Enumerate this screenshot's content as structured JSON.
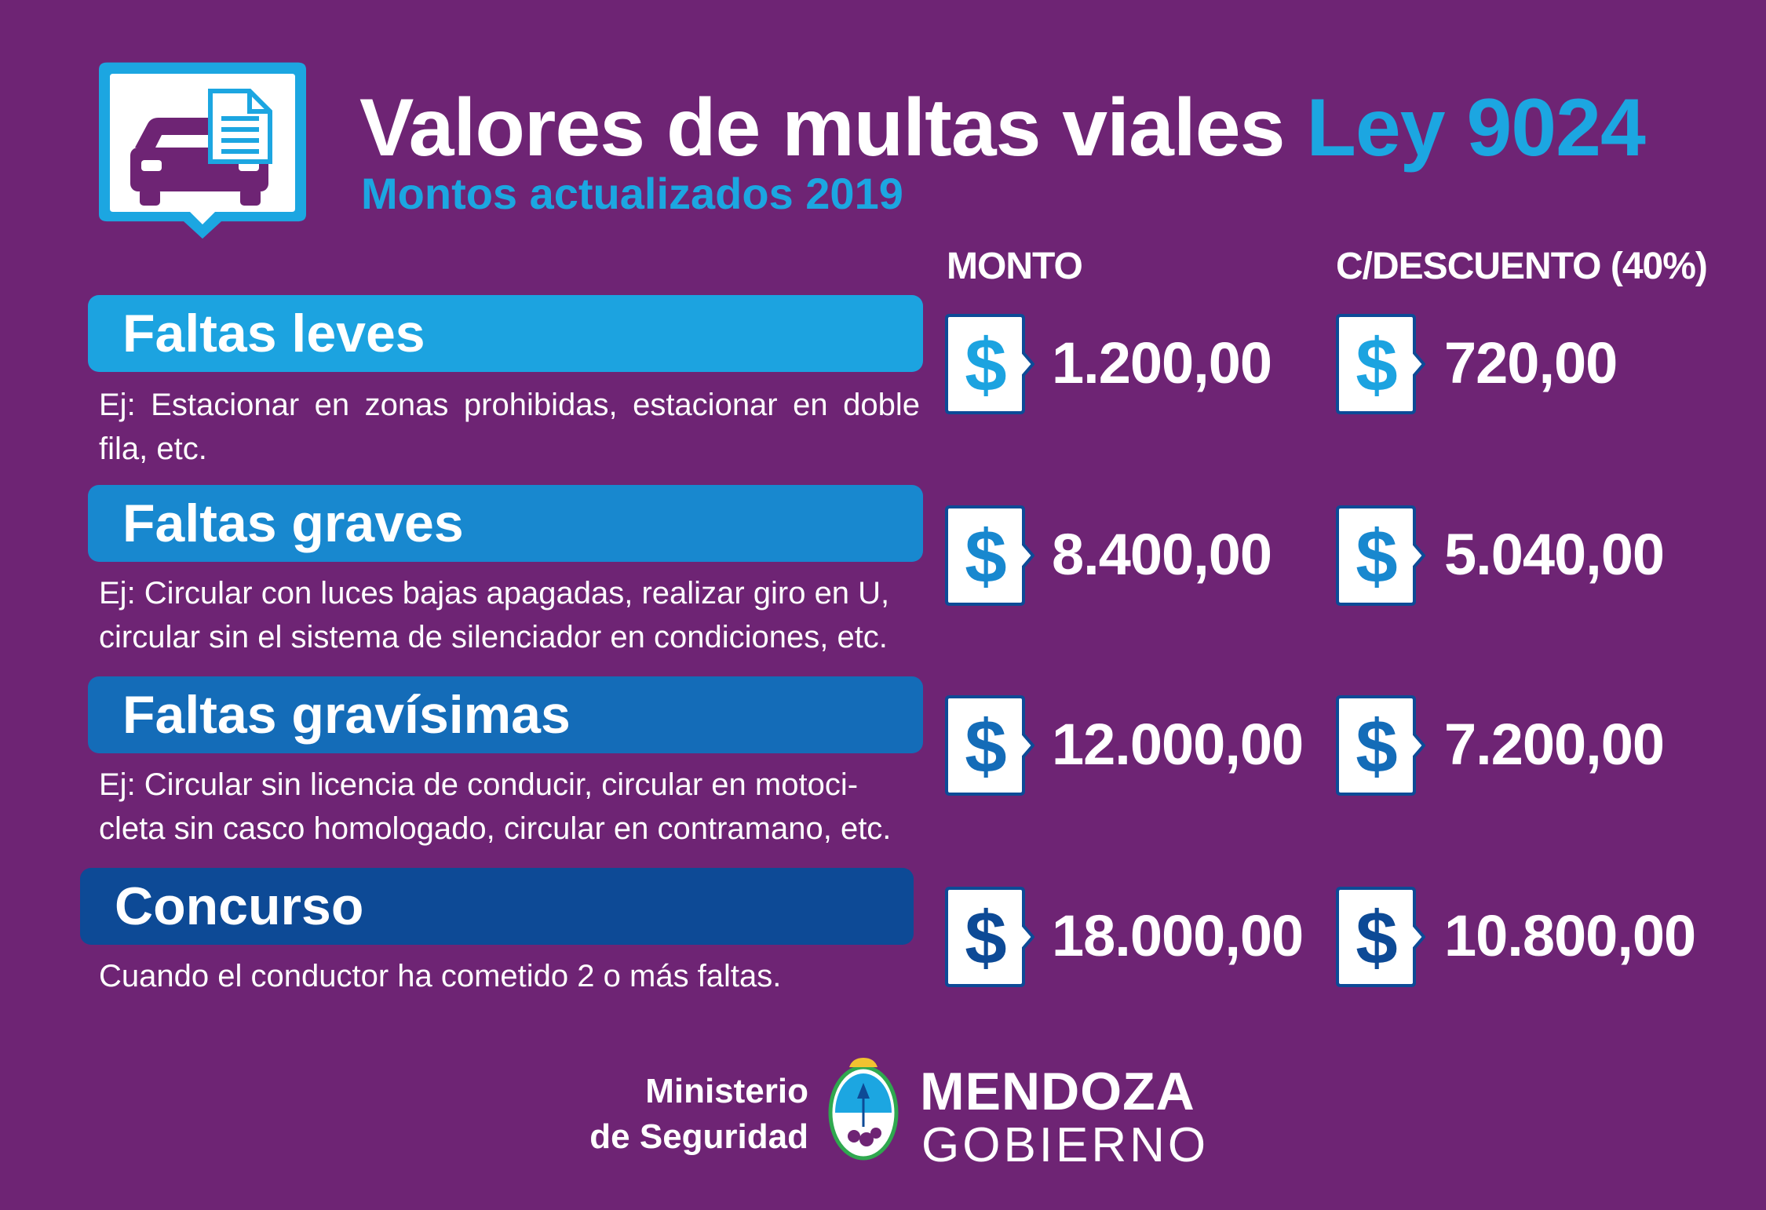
{
  "header": {
    "title_main": "Valores de multas viales",
    "title_accent": "Ley 9024",
    "subtitle": "Montos actualizados 2019"
  },
  "columns": {
    "monto": "MONTO",
    "descuento": "C/DESCUENTO (40%)"
  },
  "currency_symbol": "$",
  "rows": [
    {
      "label": "Faltas leves",
      "description": "Ej: Estacionar en zonas prohibidas, estacionar en doble fila, etc.",
      "monto": "1.200,00",
      "descuento": "720,00",
      "color": "#1ca3e0"
    },
    {
      "label": "Faltas graves",
      "description_line1": "Ej: Circular con luces bajas apagadas, realizar giro en U,",
      "description_line2": "circular sin el sistema de silenciador en condiciones, etc.",
      "monto": "8.400,00",
      "descuento": "5.040,00",
      "color": "#1888cf"
    },
    {
      "label": "Faltas gravísimas",
      "description_line1": "Ej: Circular sin licencia de conducir, circular en motoci-",
      "description_line2": "cleta sin casco homologado, circular en contramano, etc.",
      "monto": "12.000,00",
      "descuento": "7.200,00",
      "color": "#146cb8"
    },
    {
      "label": "Concurso",
      "description": "Cuando el conductor ha cometido 2 o más faltas.",
      "monto": "18.000,00",
      "descuento": "10.800,00",
      "color": "#0d4a96"
    }
  ],
  "footer": {
    "ministry_line1": "Ministerio",
    "ministry_line2": "de Seguridad",
    "brand": "MENDOZA",
    "brand_sub": "GOBIERNO"
  },
  "colors": {
    "background": "#6e2474",
    "accent": "#1ca6e1",
    "dollar_light": "#1ca3e0",
    "dollar_dark": "#0d4a96"
  },
  "icons": [
    "car-document-icon",
    "dollar-icon",
    "coat-of-arms-icon"
  ]
}
